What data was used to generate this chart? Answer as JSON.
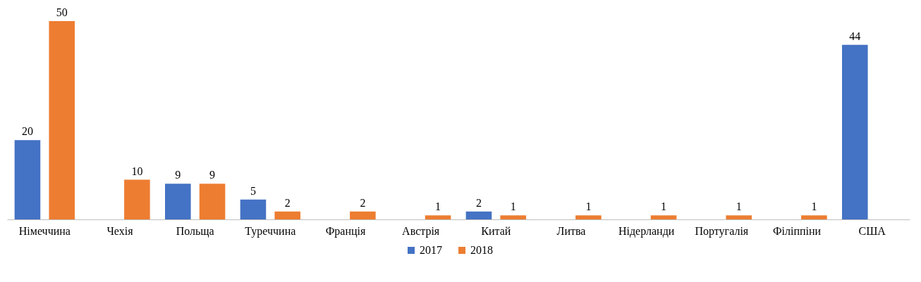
{
  "chart_data": {
    "type": "bar",
    "categories": [
      "Німеччина",
      "Чехія",
      "Польща",
      "Туреччина",
      "Франція",
      "Австрія",
      "Китай",
      "Литва",
      "Нідерланди",
      "Португалія",
      "Філіппіни",
      "США"
    ],
    "series": [
      {
        "name": "2017",
        "color": "#4472c4",
        "values": [
          20,
          null,
          9,
          5,
          null,
          null,
          2,
          null,
          null,
          null,
          null,
          44
        ]
      },
      {
        "name": "2018",
        "color": "#ed7d31",
        "values": [
          50,
          10,
          9,
          2,
          2,
          1,
          1,
          1,
          1,
          1,
          1,
          null
        ]
      }
    ],
    "data_labels": true,
    "legend": "bottom",
    "tick_labels": "x"
  }
}
